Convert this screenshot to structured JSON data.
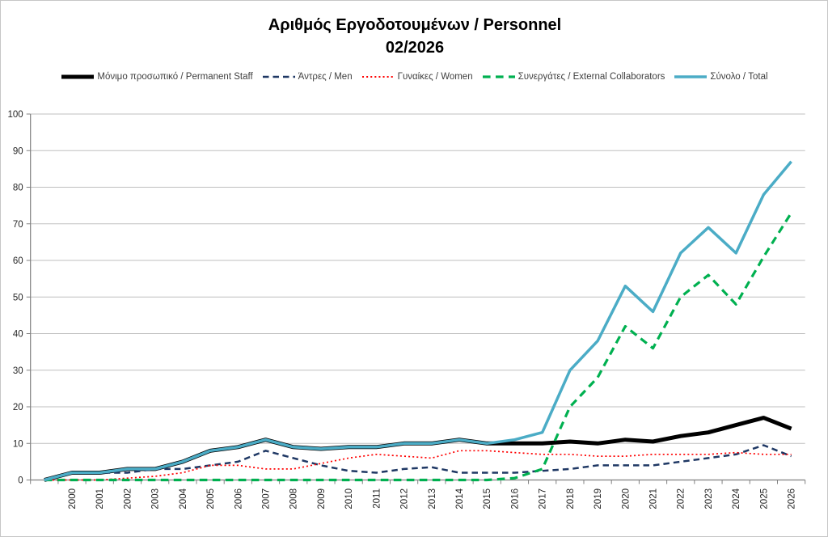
{
  "chart_data": {
    "type": "line",
    "title": "Αριθμός Εργοδοτουμένων / Personnel",
    "subtitle": "02/2026",
    "xlabel": "",
    "ylabel": "",
    "ylim": [
      0,
      100
    ],
    "ytick_step": 10,
    "grid": true,
    "legend_position": "top",
    "categories": [
      "",
      "2000",
      "2001",
      "2002",
      "2003",
      "2004",
      "2005",
      "2006",
      "2007",
      "2008",
      "2009",
      "2010",
      "2011",
      "2012",
      "2013",
      "2014",
      "2015",
      "2016",
      "2017",
      "2018",
      "2019",
      "2020",
      "2021",
      "2022",
      "2023",
      "2024",
      "2025",
      "2026"
    ],
    "series": [
      {
        "name": "Μόνιμο προσωπικό / Permanent Staff",
        "color": "#000000",
        "style": "solid",
        "width": 5,
        "values": [
          0,
          2,
          2,
          3,
          3,
          5,
          8,
          9,
          11,
          9,
          8.5,
          9,
          9,
          10,
          10,
          11,
          10,
          10,
          10,
          10.5,
          10,
          11,
          10.5,
          12,
          13,
          15,
          17,
          14
        ]
      },
      {
        "name": "Άντρες / Men",
        "color": "#1F3864",
        "style": "dashed",
        "width": 2.5,
        "values": [
          0,
          2,
          2,
          2,
          3,
          3,
          4,
          5,
          8,
          6,
          4,
          2.5,
          2,
          3,
          3.5,
          2,
          2,
          2,
          2.5,
          3,
          4,
          4,
          4,
          5,
          6,
          7,
          9.5,
          6.5
        ]
      },
      {
        "name": "Γυναίκες / Women",
        "color": "#FF0000",
        "style": "dotted",
        "width": 1.7,
        "values": [
          0,
          0,
          0,
          0.5,
          1,
          2,
          4,
          4,
          3,
          3,
          4.5,
          6,
          7,
          6.5,
          6,
          8,
          8,
          7.5,
          7,
          7,
          6.5,
          6.5,
          7,
          7,
          7,
          7.5,
          7,
          7
        ]
      },
      {
        "name": "Συνεργάτες / External Collaborators",
        "color": "#00B050",
        "style": "dashed",
        "width": 3.2,
        "values": [
          0,
          0,
          0,
          0,
          0,
          0,
          0,
          0,
          0,
          0,
          0,
          0,
          0,
          0,
          0,
          0,
          0,
          0.5,
          3,
          20,
          28,
          42,
          36,
          50,
          56,
          48,
          61,
          73
        ]
      },
      {
        "name": "Σύνολο / Total",
        "color": "#4BACC6",
        "style": "solid",
        "width": 3.5,
        "values": [
          0,
          2,
          2,
          3,
          3,
          5,
          8,
          9,
          11,
          9,
          8.5,
          9,
          9,
          10,
          10,
          11,
          10,
          11,
          13,
          30,
          38,
          53,
          46,
          62,
          69,
          62,
          78,
          87
        ]
      }
    ],
    "axis_colors": {
      "axis_line": "#808080",
      "gridline": "#BFBFBF",
      "tick_label": "#262626"
    }
  }
}
